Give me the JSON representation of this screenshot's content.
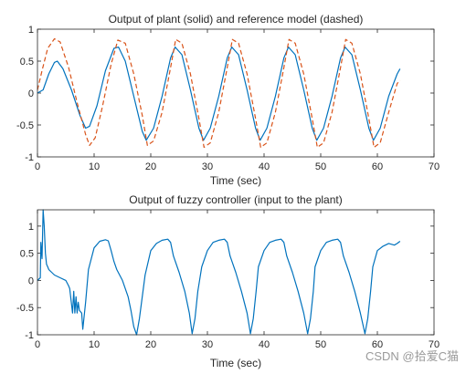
{
  "colors": {
    "plant": "#0072BD",
    "reference": "#D95319",
    "axes": "#262626"
  },
  "watermark": "CSDN @拾爱C猫",
  "chart_data": [
    {
      "type": "line",
      "title": "Output of plant (solid) and reference model (dashed)",
      "xlabel": "Time (sec)",
      "ylabel": "",
      "xlim": [
        0,
        70
      ],
      "ylim": [
        -1,
        1
      ],
      "xticks": [
        0,
        10,
        20,
        30,
        40,
        50,
        60,
        70
      ],
      "yticks": [
        -1,
        -0.5,
        0,
        0.5,
        1
      ],
      "xtick_labels": [
        "0",
        "10",
        "20",
        "30",
        "40",
        "50",
        "60",
        "70"
      ],
      "ytick_labels": [
        "-1",
        "-0.5",
        "0",
        "0.5",
        "1"
      ],
      "grid": false,
      "series": [
        {
          "style": "solid",
          "x": [
            0,
            1,
            2,
            3,
            3.5,
            4.5,
            6,
            7.5,
            8.5,
            9.2,
            10.5,
            12,
            13.5,
            14.3,
            15.5,
            17,
            18.5,
            19.2,
            20.5,
            22,
            23.5,
            24.3,
            25.5,
            27,
            28.5,
            29.3,
            30.5,
            32,
            33.5,
            34.3,
            35.5,
            37,
            38.5,
            39.3,
            40.5,
            42,
            43.5,
            44.3,
            45.5,
            47,
            48.5,
            49.3,
            50.5,
            52,
            53.5,
            54.3,
            55.5,
            57,
            58.5,
            59.3,
            60.5,
            62,
            63.5,
            64
          ],
          "y": [
            0,
            0.05,
            0.3,
            0.48,
            0.5,
            0.38,
            0.05,
            -0.35,
            -0.55,
            -0.52,
            -0.2,
            0.35,
            0.7,
            0.72,
            0.5,
            -0.05,
            -0.6,
            -0.74,
            -0.55,
            -0.05,
            0.55,
            0.72,
            0.6,
            0.05,
            -0.55,
            -0.74,
            -0.55,
            -0.05,
            0.55,
            0.72,
            0.6,
            0.05,
            -0.55,
            -0.74,
            -0.55,
            -0.05,
            0.55,
            0.72,
            0.6,
            0.05,
            -0.55,
            -0.74,
            -0.55,
            -0.05,
            0.55,
            0.72,
            0.6,
            0.05,
            -0.55,
            -0.74,
            -0.55,
            -0.05,
            0.3,
            0.38
          ]
        },
        {
          "style": "dashed",
          "x": [
            0,
            0.8,
            1.8,
            3,
            4,
            5.5,
            7,
            8.5,
            9.2,
            10.2,
            11.5,
            13,
            14.2,
            15.5,
            17,
            18.5,
            19.4,
            20.5,
            22,
            23.5,
            24.4,
            25.5,
            27,
            28.5,
            29.4,
            30.5,
            32,
            33.5,
            34.4,
            35.5,
            37,
            38.5,
            39.4,
            40.5,
            42,
            43.5,
            44.4,
            45.5,
            47,
            48.5,
            49.4,
            50.5,
            52,
            53.5,
            54.4,
            55.5,
            57,
            58.5,
            59.4,
            60.5,
            62,
            63.5,
            64
          ],
          "y": [
            0.05,
            0.35,
            0.7,
            0.85,
            0.8,
            0.4,
            -0.15,
            -0.65,
            -0.82,
            -0.7,
            -0.2,
            0.45,
            0.83,
            0.78,
            0.3,
            -0.35,
            -0.82,
            -0.75,
            -0.3,
            0.4,
            0.84,
            0.78,
            0.3,
            -0.4,
            -0.85,
            -0.78,
            -0.3,
            0.4,
            0.84,
            0.78,
            0.3,
            -0.4,
            -0.85,
            -0.78,
            -0.3,
            0.4,
            0.84,
            0.78,
            0.3,
            -0.4,
            -0.85,
            -0.78,
            -0.3,
            0.4,
            0.84,
            0.78,
            0.3,
            -0.4,
            -0.85,
            -0.78,
            -0.3,
            0.15,
            0.2
          ]
        }
      ]
    },
    {
      "type": "line",
      "title": "Output of fuzzy controller (input to the plant)",
      "xlabel": "Time (sec)",
      "ylabel": "",
      "xlim": [
        0,
        70
      ],
      "ylim": [
        -1,
        1.3
      ],
      "xticks": [
        0,
        10,
        20,
        30,
        40,
        50,
        60,
        70
      ],
      "yticks": [
        -1,
        -0.5,
        0,
        0.5,
        1
      ],
      "xtick_labels": [
        "0",
        "10",
        "20",
        "30",
        "40",
        "50",
        "60",
        "70"
      ],
      "ytick_labels": [
        "-1",
        "-0.5",
        "0",
        "0.5",
        "1"
      ],
      "grid": false,
      "series": [
        {
          "style": "solid",
          "x": [
            0,
            0.5,
            0.6,
            0.8,
            1.0,
            1.2,
            1.4,
            1.6,
            1.8,
            2.0,
            2.2,
            2.5,
            3,
            4,
            5,
            5.5,
            5.7,
            6.2,
            6.4,
            6.6,
            6.8,
            7.0,
            7.2,
            7.4,
            7.8,
            8.0,
            8.5,
            9.0,
            10,
            11,
            12,
            12.5,
            13,
            13.5,
            14,
            15,
            16,
            16.5,
            17,
            17.5,
            18,
            19,
            20,
            21,
            22,
            23,
            23.5,
            24,
            25,
            26,
            26.8,
            27.3,
            27.8,
            28.3,
            29,
            30,
            31,
            32,
            33,
            33.5,
            34,
            35,
            36,
            37,
            37.6,
            38.1,
            38.6,
            39,
            40,
            41,
            42,
            43,
            43.5,
            44,
            45,
            46,
            47,
            47.7,
            48.2,
            48.7,
            49,
            50,
            51,
            52,
            53,
            53.5,
            54,
            55,
            56,
            57,
            57.8,
            58.3,
            58.8,
            59.2,
            60,
            61,
            62,
            63,
            63.5,
            64
          ],
          "y": [
            0,
            0.05,
            0.7,
            0.4,
            1.3,
            1.0,
            0.5,
            0.3,
            0.25,
            0.2,
            0.18,
            0.15,
            0.1,
            0.05,
            0.0,
            -0.1,
            -0.15,
            -0.6,
            -0.2,
            -0.6,
            -0.3,
            -0.6,
            -0.4,
            -0.55,
            -0.6,
            -0.9,
            -0.4,
            0.2,
            0.6,
            0.72,
            0.75,
            0.73,
            0.55,
            0.35,
            0.2,
            0.0,
            -0.3,
            -0.55,
            -0.85,
            -1.0,
            -0.7,
            0.1,
            0.55,
            0.68,
            0.74,
            0.76,
            0.7,
            0.45,
            0.15,
            -0.2,
            -0.6,
            -0.98,
            -0.7,
            -0.2,
            0.25,
            0.55,
            0.7,
            0.74,
            0.76,
            0.7,
            0.45,
            0.15,
            -0.2,
            -0.6,
            -0.98,
            -0.7,
            -0.2,
            0.25,
            0.55,
            0.7,
            0.74,
            0.76,
            0.7,
            0.45,
            0.15,
            -0.2,
            -0.6,
            -0.98,
            -0.7,
            -0.2,
            0.25,
            0.55,
            0.7,
            0.74,
            0.76,
            0.7,
            0.45,
            0.15,
            -0.2,
            -0.6,
            -0.98,
            -0.7,
            -0.2,
            0.25,
            0.55,
            0.63,
            0.68,
            0.65,
            0.68,
            0.72
          ]
        }
      ]
    }
  ]
}
